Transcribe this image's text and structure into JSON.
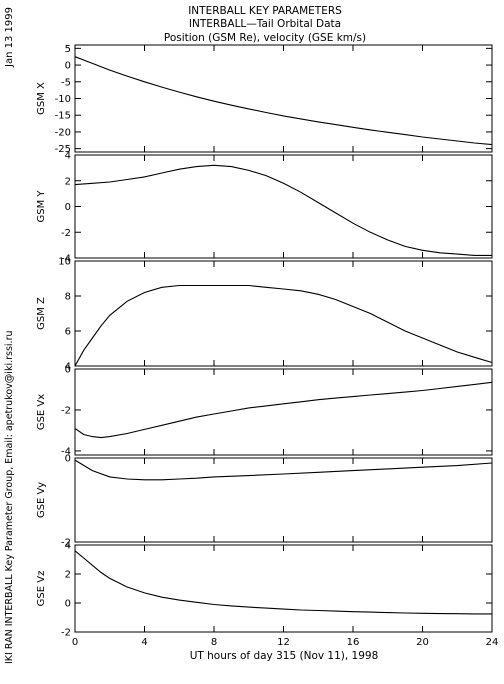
{
  "title_lines": [
    "INTERBALL KEY PARAMETERS",
    "INTERBALL—Tail Orbital Data",
    "Position (GSM Re), velocity (GSE km/s)"
  ],
  "left_date": "Jan 13 1999",
  "left_credit": "IKI RAN INTERBALL Key Parameter Group, Email: apetrukov@iki.rssi.ru",
  "chart_data": {
    "type": "line",
    "xlabel": "UT hours of day 315 (Nov 11), 1998",
    "xlim": [
      0,
      24
    ],
    "xticks": [
      0,
      4,
      8,
      12,
      16,
      20,
      24
    ],
    "panels": [
      {
        "ylabel": "GSM X",
        "ylim": [
          -26,
          6
        ],
        "yticks": [
          5,
          0,
          -5,
          -10,
          -15,
          -20,
          -25
        ],
        "x": [
          0,
          1,
          2,
          3,
          4,
          5,
          6,
          7,
          8,
          9,
          10,
          11,
          12,
          13,
          14,
          15,
          16,
          17,
          18,
          19,
          20,
          21,
          22,
          23,
          24
        ],
        "y": [
          2.5,
          0.5,
          -1.5,
          -3.3,
          -5.0,
          -6.6,
          -8.1,
          -9.5,
          -10.8,
          -12.0,
          -13.1,
          -14.2,
          -15.2,
          -16.1,
          -17.0,
          -17.8,
          -18.6,
          -19.4,
          -20.1,
          -20.8,
          -21.5,
          -22.1,
          -22.7,
          -23.3,
          -23.8
        ]
      },
      {
        "ylabel": "GSM Y",
        "ylim": [
          -4,
          4
        ],
        "yticks": [
          4,
          2,
          0,
          -2,
          -4
        ],
        "x": [
          0,
          1,
          2,
          3,
          4,
          5,
          6,
          7,
          8,
          9,
          10,
          11,
          12,
          13,
          14,
          15,
          16,
          17,
          18,
          19,
          20,
          21,
          22,
          23,
          24
        ],
        "y": [
          1.7,
          1.8,
          1.9,
          2.1,
          2.3,
          2.6,
          2.9,
          3.1,
          3.2,
          3.1,
          2.8,
          2.4,
          1.8,
          1.1,
          0.3,
          -0.5,
          -1.3,
          -2.0,
          -2.6,
          -3.1,
          -3.4,
          -3.6,
          -3.7,
          -3.8,
          -3.8
        ]
      },
      {
        "ylabel": "GSM Z",
        "ylim": [
          4,
          10
        ],
        "yticks": [
          10,
          8,
          6,
          4
        ],
        "x": [
          0,
          0.5,
          1,
          1.5,
          2,
          3,
          4,
          5,
          6,
          7,
          8,
          9,
          10,
          11,
          12,
          13,
          14,
          15,
          16,
          17,
          18,
          19,
          20,
          21,
          22,
          23,
          24
        ],
        "y": [
          4.0,
          4.9,
          5.6,
          6.3,
          6.9,
          7.7,
          8.2,
          8.5,
          8.6,
          8.6,
          8.6,
          8.6,
          8.6,
          8.5,
          8.4,
          8.3,
          8.1,
          7.8,
          7.4,
          7.0,
          6.5,
          6.0,
          5.6,
          5.2,
          4.8,
          4.5,
          4.2
        ]
      },
      {
        "ylabel": "GSE Vx",
        "ylim": [
          -4.2,
          0
        ],
        "yticks": [
          0,
          -2,
          -4
        ],
        "x": [
          0,
          0.5,
          1,
          1.5,
          2,
          3,
          4,
          5,
          6,
          7,
          8,
          9,
          10,
          11,
          12,
          13,
          14,
          15,
          16,
          17,
          18,
          19,
          20,
          21,
          22,
          23,
          24
        ],
        "y": [
          -2.9,
          -3.2,
          -3.3,
          -3.35,
          -3.3,
          -3.15,
          -2.95,
          -2.75,
          -2.55,
          -2.35,
          -2.2,
          -2.05,
          -1.9,
          -1.8,
          -1.7,
          -1.6,
          -1.5,
          -1.42,
          -1.35,
          -1.27,
          -1.2,
          -1.13,
          -1.05,
          -0.95,
          -0.85,
          -0.75,
          -0.65
        ]
      },
      {
        "ylabel": "GSE Vy",
        "ylim": [
          -2,
          0
        ],
        "yticks": [
          0,
          -2
        ],
        "x": [
          0,
          1,
          2,
          3,
          4,
          5,
          6,
          7,
          8,
          10,
          12,
          14,
          16,
          18,
          20,
          22,
          24
        ],
        "y": [
          -0.05,
          -0.3,
          -0.45,
          -0.5,
          -0.52,
          -0.52,
          -0.5,
          -0.48,
          -0.45,
          -0.42,
          -0.38,
          -0.34,
          -0.3,
          -0.26,
          -0.22,
          -0.18,
          -0.12
        ]
      },
      {
        "ylabel": "GSE Vz",
        "ylim": [
          -2,
          4
        ],
        "yticks": [
          4,
          2,
          0,
          -2
        ],
        "x": [
          0,
          0.5,
          1,
          1.5,
          2,
          3,
          4,
          5,
          6,
          7,
          8,
          9,
          10,
          11,
          12,
          13,
          14,
          15,
          16,
          17,
          18,
          19,
          20,
          21,
          22,
          23,
          24
        ],
        "y": [
          3.6,
          3.1,
          2.6,
          2.1,
          1.7,
          1.1,
          0.7,
          0.4,
          0.2,
          0.05,
          -0.1,
          -0.2,
          -0.28,
          -0.35,
          -0.42,
          -0.48,
          -0.52,
          -0.56,
          -0.6,
          -0.63,
          -0.66,
          -0.69,
          -0.71,
          -0.73,
          -0.74,
          -0.75,
          -0.75
        ]
      }
    ]
  }
}
